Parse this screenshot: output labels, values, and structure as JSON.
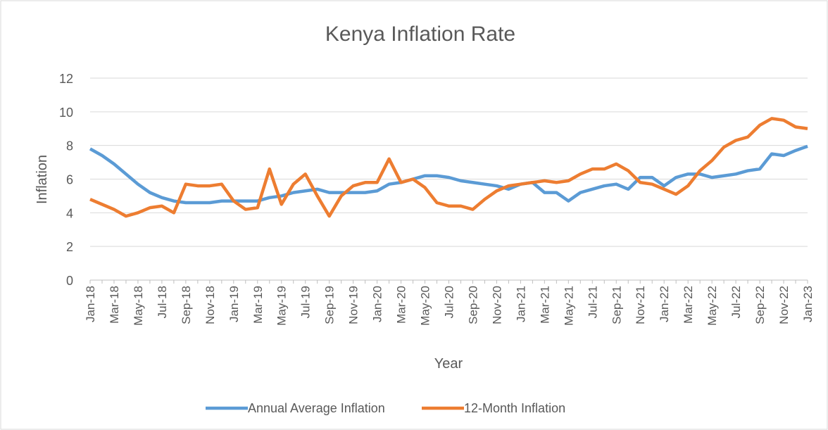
{
  "chart_data": {
    "type": "line",
    "title": "Kenya Inflation Rate",
    "x_label": "Year",
    "y_label": "Inflation",
    "categories": [
      "Jan-18",
      null,
      "Mar-18",
      null,
      "May-18",
      null,
      "Jul-18",
      null,
      "Sep-18",
      null,
      "Nov-18",
      null,
      "Jan-19",
      null,
      "Mar-19",
      null,
      "May-19",
      null,
      "Jul-19",
      null,
      "Sep-19",
      null,
      "Nov-19",
      null,
      "Jan-20",
      null,
      "Mar-20",
      null,
      "May-20",
      null,
      "Jul-20",
      null,
      "Sep-20",
      null,
      "Nov-20",
      null,
      "Jan-21",
      null,
      "Mar-21",
      null,
      "May-21",
      null,
      "Jul-21",
      null,
      "Sep-21",
      null,
      "Nov-21",
      null,
      "Jan-22",
      null,
      "Mar-22",
      null,
      "May-22",
      null,
      "Jul-22",
      null,
      "Sep-22",
      null,
      "Nov-22",
      null,
      "Jan-23"
    ],
    "series": [
      {
        "name": "Annual Average Inflation",
        "color": "#5b9bd5",
        "values": [
          7.8,
          7.4,
          6.9,
          6.3,
          5.7,
          5.2,
          4.9,
          4.7,
          4.6,
          4.6,
          4.6,
          4.7,
          4.7,
          4.7,
          4.7,
          4.9,
          5.0,
          5.2,
          5.3,
          5.4,
          5.2,
          5.2,
          5.2,
          5.2,
          5.3,
          5.7,
          5.8,
          6.0,
          6.2,
          6.2,
          6.1,
          5.9,
          5.8,
          5.7,
          5.6,
          5.4,
          5.7,
          5.8,
          5.2,
          5.2,
          4.7,
          5.2,
          5.4,
          5.6,
          5.7,
          5.4,
          6.1,
          6.1,
          5.6,
          6.1,
          6.3,
          6.3,
          6.1,
          6.2,
          6.3,
          6.5,
          6.6,
          7.5,
          7.4,
          7.7,
          7.95
        ]
      },
      {
        "name": "12-Month Inflation",
        "color": "#ed7d31",
        "values": [
          4.8,
          4.5,
          4.2,
          3.8,
          4.0,
          4.3,
          4.4,
          4.0,
          5.7,
          5.6,
          5.6,
          5.7,
          4.7,
          4.2,
          4.3,
          6.6,
          4.5,
          5.7,
          6.3,
          5.0,
          3.8,
          5.0,
          5.6,
          5.8,
          5.8,
          7.2,
          5.8,
          6.0,
          5.5,
          4.6,
          4.4,
          4.4,
          4.2,
          4.8,
          5.3,
          5.6,
          5.7,
          5.8,
          5.9,
          5.8,
          5.9,
          6.3,
          6.6,
          6.6,
          6.9,
          6.5,
          5.8,
          5.7,
          5.4,
          5.1,
          5.6,
          6.5,
          7.1,
          7.9,
          8.3,
          8.5,
          9.2,
          9.6,
          9.5,
          9.1,
          9.0
        ]
      }
    ],
    "ylim": [
      0,
      12
    ],
    "yticks": [
      0,
      2,
      4,
      6,
      8,
      10,
      12
    ],
    "grid": true,
    "legend": "bottom"
  }
}
